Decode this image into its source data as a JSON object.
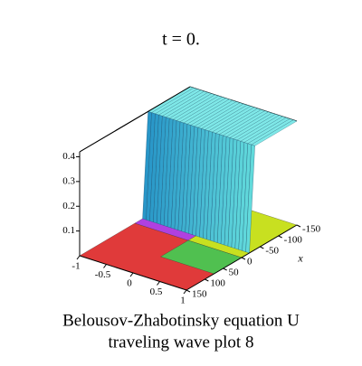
{
  "chart_data": {
    "type": "surface3d",
    "title": "t = 0.",
    "caption": [
      "Belousov-Zhabotinsky equation U",
      "traveling wave plot 8"
    ],
    "xlabel": "x",
    "xlim": [
      150,
      -150
    ],
    "xticks": [
      -150,
      -100,
      -50,
      0,
      50,
      100,
      150
    ],
    "ylim": [
      -1,
      1
    ],
    "yticks": [
      -1,
      -0.5,
      0,
      0.5,
      1
    ],
    "zlim": [
      0,
      0.42
    ],
    "zticks": [
      0.1,
      0.2,
      0.3,
      0.4
    ]
  }
}
